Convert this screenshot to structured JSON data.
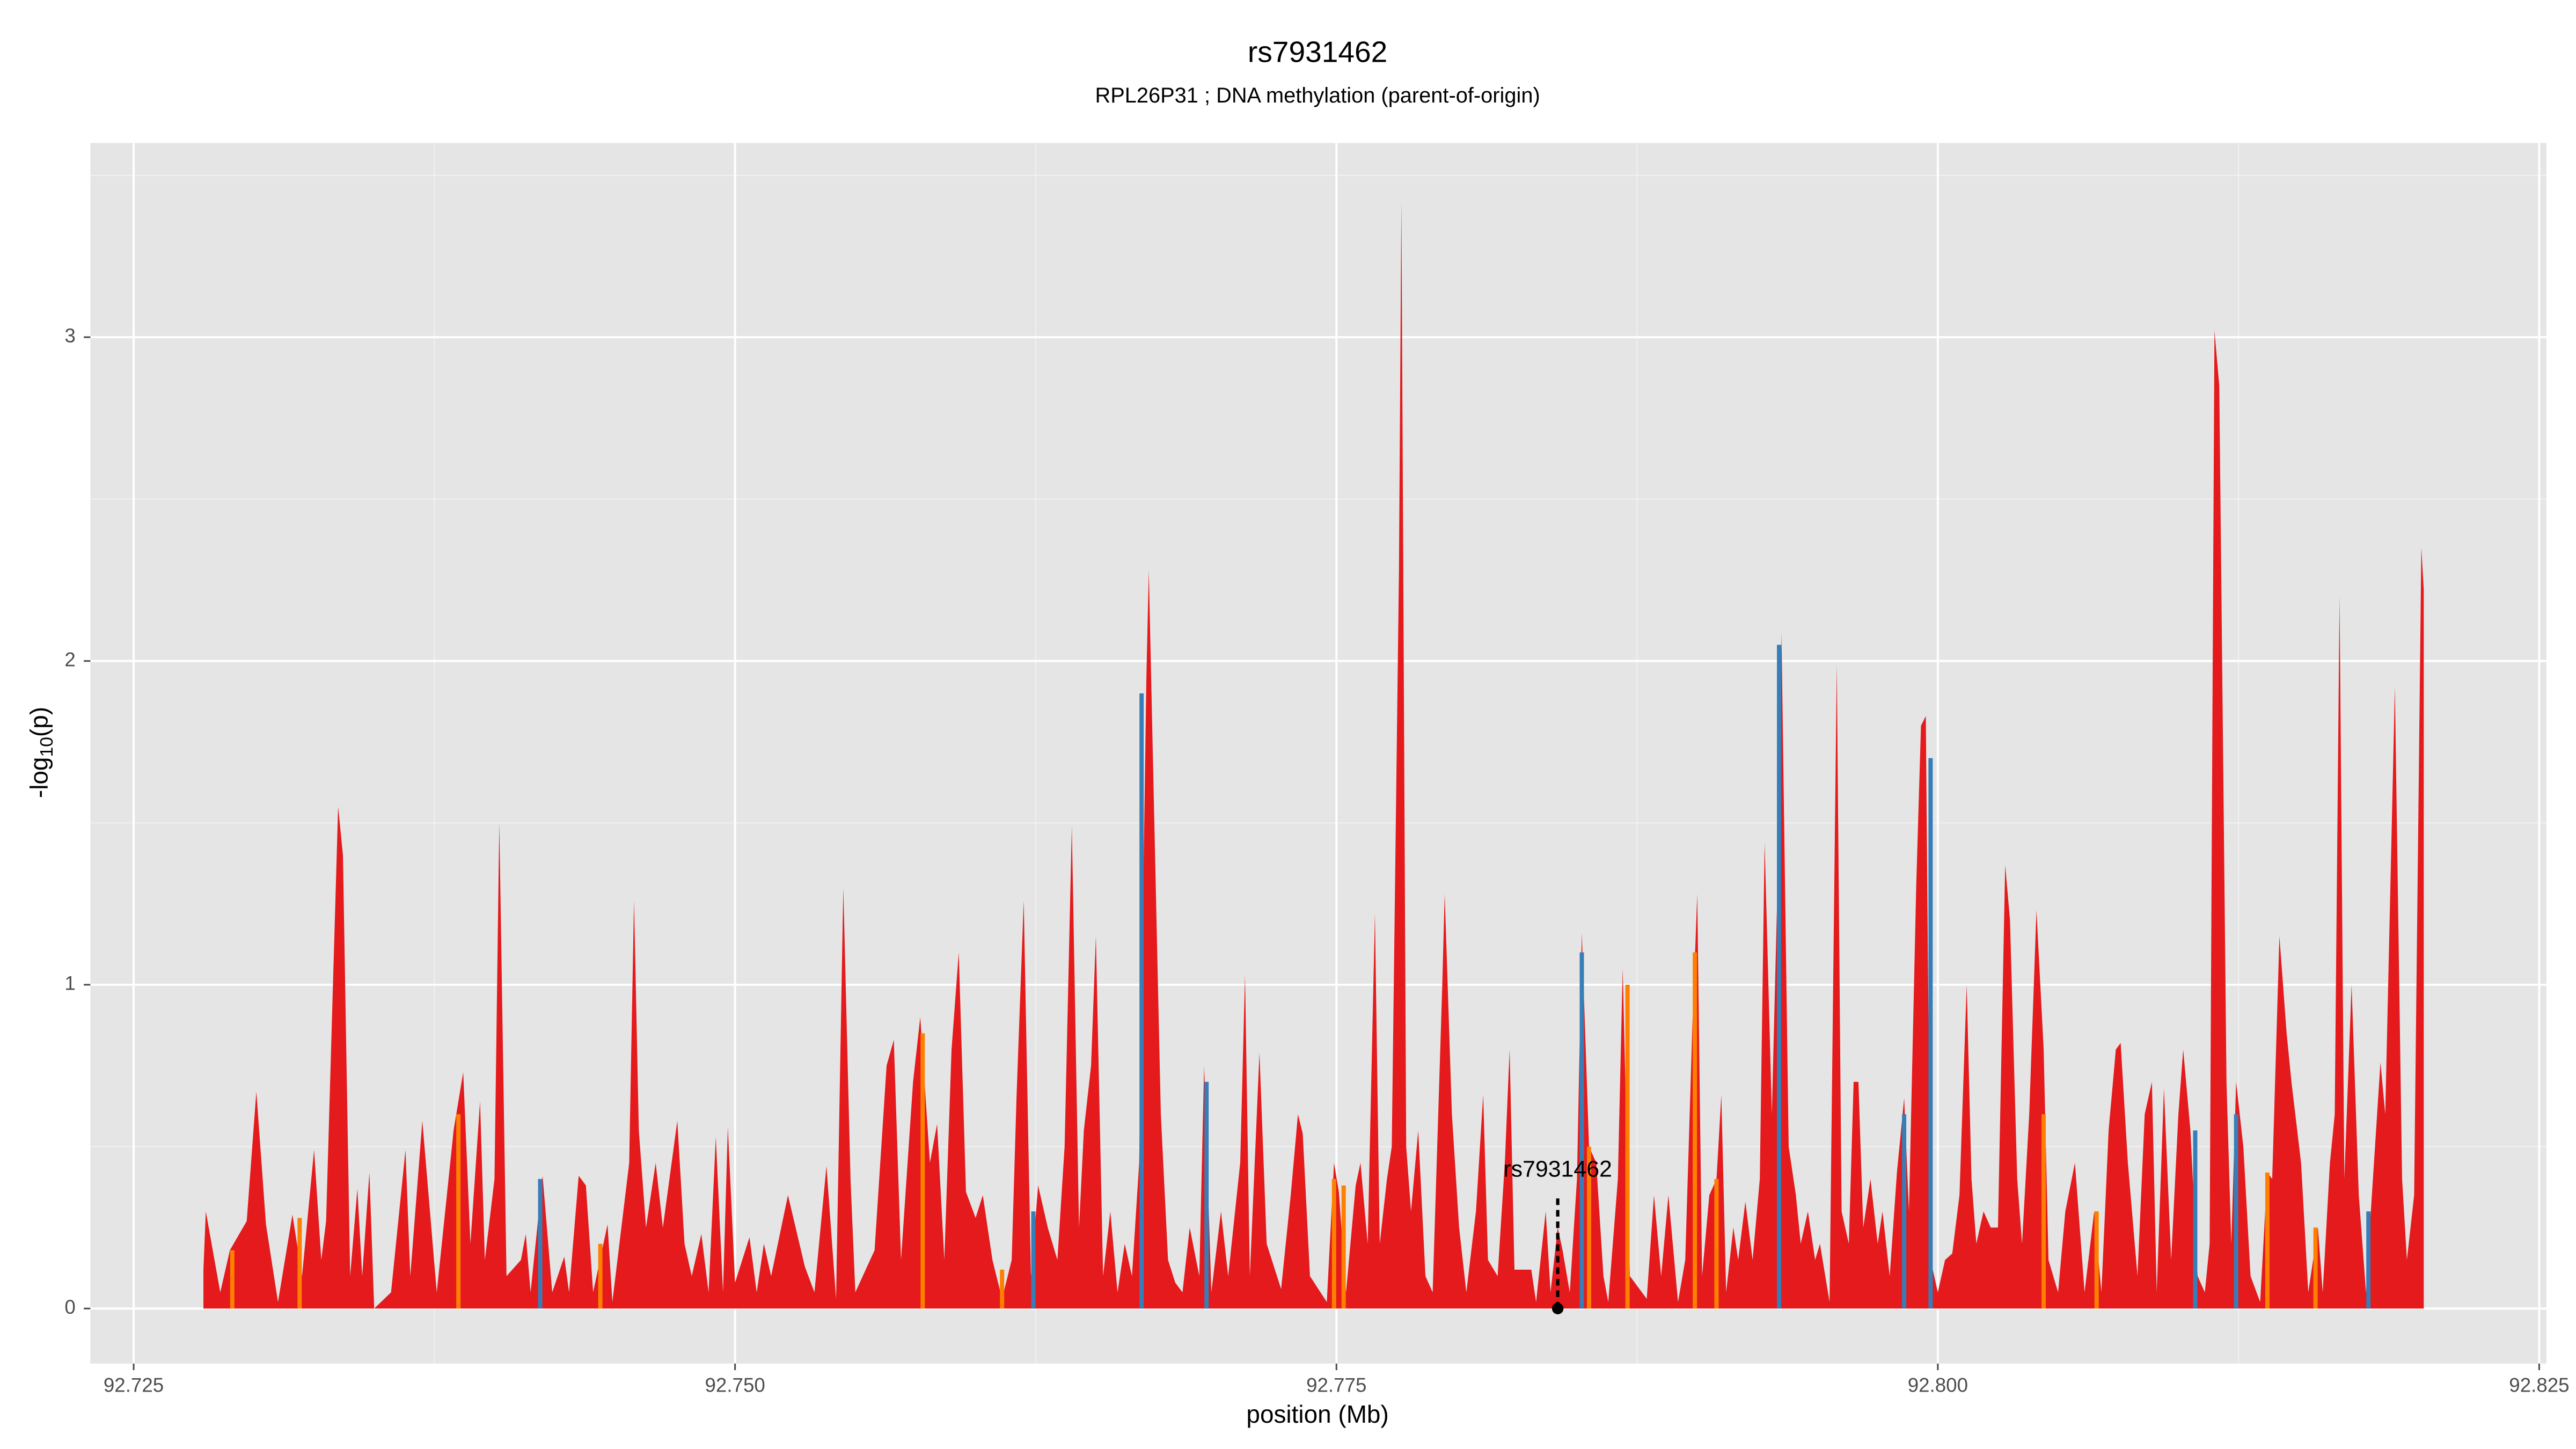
{
  "chart_data": {
    "type": "area",
    "title": "rs7931462",
    "subtitle": "RPL26P31 ; DNA methylation (parent-of-origin)",
    "xlabel": "position (Mb)",
    "ylabel": [
      "-log",
      "10",
      "(p)"
    ],
    "xlim": [
      92.7232,
      92.8253
    ],
    "ylim": [
      -0.17,
      3.6
    ],
    "xticks": [
      92.725,
      {
        "value": 92.75,
        "label": "92.750"
      },
      92.775,
      {
        "value": 92.8,
        "label": "92.800"
      },
      92.825
    ],
    "yticks": [
      0,
      1,
      2,
      3
    ],
    "xminor": [
      92.7375,
      92.7625,
      92.7875,
      92.8125
    ],
    "yminor": [
      0.5,
      1.5,
      2.5,
      3.5
    ],
    "grid": true,
    "panel_color": "#e5e5e5",
    "annotation": {
      "text": "rs7931462",
      "x": 92.7842
    },
    "series": [
      {
        "color": "#e41a1c",
        "mark": "area",
        "x": [
          92.7279,
          92.728,
          92.7286,
          92.729,
          92.7297,
          92.7301,
          92.7305,
          92.731,
          92.7316,
          92.732,
          92.7325,
          92.7328,
          92.733,
          92.7335,
          92.7337,
          92.734,
          92.7343,
          92.7345,
          92.7348,
          92.735,
          92.7357,
          92.7363,
          92.7365,
          92.737,
          92.7376,
          92.7383,
          92.7387,
          92.739,
          92.7394,
          92.7396,
          92.74,
          92.7402,
          92.7405,
          92.7411,
          92.7413,
          92.7415,
          92.742,
          92.7424,
          92.7429,
          92.7431,
          92.7435,
          92.7438,
          92.7441,
          92.7447,
          92.7449,
          92.7456,
          92.7458,
          92.746,
          92.7463,
          92.7467,
          92.747,
          92.7476,
          92.7479,
          92.7482,
          92.7486,
          92.7489,
          92.7492,
          92.7495,
          92.7497,
          92.75,
          92.7506,
          92.7509,
          92.7512,
          92.7515,
          92.7522,
          92.7529,
          92.7533,
          92.7538,
          92.7542,
          92.7545,
          92.7548,
          92.755,
          92.7558,
          92.7563,
          92.7566,
          92.7569,
          92.7574,
          92.7577,
          92.7581,
          92.7584,
          92.7587,
          92.759,
          92.7593,
          92.7596,
          92.76,
          92.7603,
          92.7607,
          92.7611,
          92.7615,
          92.7617,
          92.762,
          92.7623,
          92.7626,
          92.763,
          92.7634,
          92.7637,
          92.764,
          92.7643,
          92.7645,
          92.7648,
          92.765,
          92.7653,
          92.7656,
          92.7659,
          92.7662,
          92.7665,
          92.7668,
          92.7671,
          92.7672,
          92.7674,
          92.7677,
          92.768,
          92.7683,
          92.7686,
          92.7689,
          92.7693,
          92.7695,
          92.7698,
          92.7702,
          92.7705,
          92.771,
          92.7712,
          92.7714,
          92.7718,
          92.7721,
          92.7727,
          92.7731,
          92.7734,
          92.7736,
          92.7739,
          92.7746,
          92.7749,
          92.7751,
          92.7754,
          92.7758,
          92.776,
          92.7763,
          92.7766,
          92.7768,
          92.7771,
          92.7773,
          92.7776,
          92.7777,
          92.7779,
          92.7781,
          92.7784,
          92.7787,
          92.779,
          92.7794,
          92.7795,
          92.7798,
          92.7801,
          92.7804,
          92.7808,
          92.7811,
          92.7813,
          92.7817,
          92.782,
          92.7822,
          92.7824,
          92.7831,
          92.7833,
          92.7837,
          92.7839,
          92.7842,
          92.7844,
          92.7847,
          92.785,
          92.7852,
          92.7855,
          92.7858,
          92.7861,
          92.7863,
          92.7867,
          92.7869,
          92.7872,
          92.7879,
          92.7882,
          92.7885,
          92.7888,
          92.7892,
          92.7895,
          92.7898,
          92.79,
          92.7902,
          92.7905,
          92.7908,
          92.791,
          92.7912,
          92.7915,
          92.7917,
          92.792,
          92.7923,
          92.7926,
          92.7928,
          92.7931,
          92.7934,
          92.7935,
          92.7938,
          92.7941,
          92.7943,
          92.7946,
          92.7949,
          92.7951,
          92.7955,
          92.7958,
          92.796,
          92.7963,
          92.7965,
          92.7967,
          92.7969,
          92.7972,
          92.7975,
          92.7977,
          92.798,
          92.7983,
          92.7986,
          92.7988,
          92.7991,
          92.7993,
          92.7995,
          92.7997,
          92.8,
          92.8003,
          92.8006,
          92.8009,
          92.8012,
          92.8014,
          92.8016,
          92.8019,
          92.8022,
          92.8025,
          92.8028,
          92.803,
          92.8033,
          92.8035,
          92.8038,
          92.8041,
          92.8044,
          92.8046,
          92.805,
          92.8053,
          92.8057,
          92.8061,
          92.8065,
          92.8068,
          92.8071,
          92.8074,
          92.8076,
          92.8079,
          92.8083,
          92.8086,
          92.8089,
          92.8091,
          92.8094,
          92.8097,
          92.81,
          92.8102,
          92.8105,
          92.8108,
          92.8111,
          92.8113,
          92.8115,
          92.8117,
          92.812,
          92.8122,
          92.8124,
          92.8127,
          92.813,
          92.8134,
          92.8137,
          92.8139,
          92.8142,
          92.8145,
          92.8147,
          92.8151,
          92.8154,
          92.8158,
          92.816,
          92.8163,
          92.8165,
          92.8167,
          92.8169,
          92.8172,
          92.8175,
          92.8178,
          92.818,
          92.8184,
          92.8186,
          92.819,
          92.8193,
          92.8195,
          92.8198,
          92.8201,
          92.8202
        ],
        "values": [
          0.12,
          0.3,
          0.05,
          0.18,
          0.27,
          0.67,
          0.26,
          0.02,
          0.29,
          0.1,
          0.49,
          0.15,
          0.27,
          1.55,
          1.4,
          0.1,
          0.37,
          0.1,
          0.42,
          0,
          0.05,
          0.49,
          0.1,
          0.58,
          0.05,
          0.55,
          0.73,
          0.2,
          0.64,
          0.15,
          0.4,
          1.5,
          0.1,
          0.15,
          0.23,
          0.05,
          0.41,
          0.05,
          0.16,
          0.05,
          0.41,
          0.38,
          0.05,
          0.26,
          0.02,
          0.45,
          1.26,
          0.55,
          0.25,
          0.45,
          0.25,
          0.58,
          0.2,
          0.1,
          0.23,
          0.05,
          0.53,
          0.05,
          0.56,
          0.08,
          0.22,
          0.05,
          0.2,
          0.1,
          0.35,
          0.13,
          0.05,
          0.44,
          0.03,
          1.3,
          0.4,
          0.05,
          0.18,
          0.75,
          0.83,
          0.15,
          0.7,
          0.9,
          0.45,
          0.57,
          0.15,
          0.8,
          1.1,
          0.36,
          0.28,
          0.35,
          0.15,
          0.03,
          0.15,
          0.65,
          1.26,
          0.1,
          0.38,
          0.25,
          0.15,
          0.5,
          1.49,
          0.25,
          0.55,
          0.75,
          1.15,
          0.1,
          0.3,
          0.05,
          0.2,
          0.1,
          0.45,
          1.95,
          2.28,
          1.6,
          0.6,
          0.15,
          0.08,
          0.05,
          0.25,
          0.1,
          0.75,
          0.05,
          0.3,
          0.1,
          0.45,
          1.03,
          0.1,
          0.79,
          0.2,
          0.06,
          0.35,
          0.6,
          0.54,
          0.1,
          0.02,
          0.45,
          0.36,
          0.05,
          0.38,
          0.45,
          0.2,
          1.22,
          0.2,
          0.4,
          0.5,
          2.28,
          3.42,
          0.5,
          0.3,
          0.55,
          0.1,
          0.05,
          1,
          1.28,
          0.6,
          0.25,
          0.05,
          0.3,
          0.66,
          0.15,
          0.1,
          0.45,
          0.8,
          0.12,
          0.12,
          0.02,
          0.3,
          0.05,
          0.25,
          0.18,
          0.05,
          0.4,
          1.16,
          0.5,
          0.45,
          0.1,
          0.02,
          0.4,
          1.05,
          0.1,
          0.03,
          0.35,
          0.1,
          0.35,
          0.02,
          0.15,
          0.88,
          1.28,
          0.1,
          0.35,
          0.4,
          0.66,
          0.05,
          0.25,
          0.15,
          0.33,
          0.15,
          0.4,
          1.44,
          0.6,
          1.5,
          2.09,
          0.5,
          0.35,
          0.2,
          0.3,
          0.15,
          0.2,
          0.02,
          1.99,
          0.3,
          0.2,
          0.7,
          0.7,
          0.25,
          0.4,
          0.2,
          0.3,
          0.1,
          0.42,
          0.65,
          0.3,
          1.3,
          1.8,
          1.83,
          0.15,
          0.05,
          0.15,
          0.17,
          0.35,
          1,
          0.4,
          0.2,
          0.3,
          0.25,
          0.25,
          1.37,
          1.2,
          0.4,
          0.2,
          0.6,
          1.23,
          0.8,
          0.15,
          0.05,
          0.3,
          0.45,
          0.05,
          0.3,
          0.05,
          0.55,
          0.8,
          0.82,
          0.45,
          0.1,
          0.6,
          0.7,
          0.05,
          0.68,
          0.15,
          0.6,
          0.8,
          0.55,
          0.1,
          0.05,
          0.2,
          3.02,
          2.85,
          0.7,
          0.2,
          0.7,
          0.5,
          0.1,
          0.02,
          0.42,
          0.4,
          1.15,
          0.85,
          0.7,
          0.45,
          0.05,
          0.25,
          0.05,
          0.45,
          0.6,
          2.2,
          0.4,
          1,
          0.35,
          0.05,
          0.3,
          0.76,
          0.6,
          1.92,
          0.4,
          0.15,
          0.35,
          2.35,
          2.22
        ]
      },
      {
        "color": "#ff7f00",
        "mark": "spike",
        "x": [
          92.7291,
          92.7319,
          92.7385,
          92.7444,
          92.7578,
          92.7611,
          92.7749,
          92.7753,
          92.7855,
          92.7871,
          92.7899,
          92.7908,
          92.8044,
          92.8066,
          92.8137,
          92.8157
        ],
        "values": [
          0.18,
          0.28,
          0.6,
          0.2,
          0.85,
          0.12,
          0.4,
          0.38,
          0.5,
          1,
          1.1,
          0.4,
          0.6,
          0.3,
          0.42,
          0.25
        ]
      },
      {
        "color": "#377eb8",
        "mark": "spike",
        "x": [
          92.7419,
          92.7624,
          92.7669,
          92.7696,
          92.7852,
          92.7934,
          92.7986,
          92.7997,
          92.8107,
          92.8124,
          92.8179
        ],
        "values": [
          0.4,
          0.3,
          1.9,
          0.7,
          1.1,
          2.05,
          0.6,
          1.7,
          0.55,
          0.6,
          0.3
        ]
      }
    ]
  }
}
